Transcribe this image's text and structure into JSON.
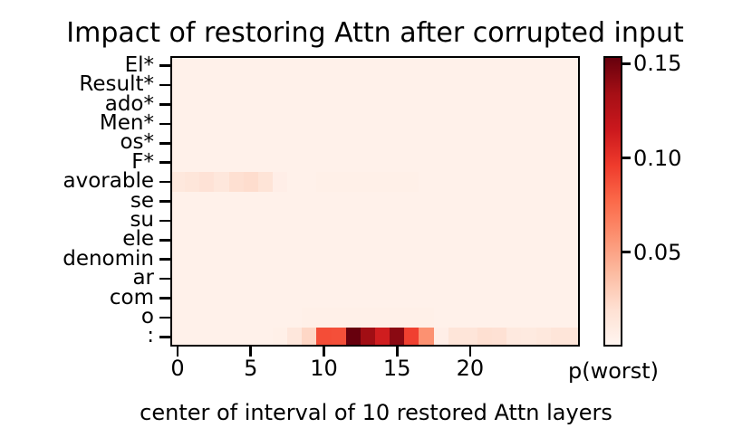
{
  "title": "Impact of restoring Attn after corrupted input",
  "xlabel": "center of interval of 10 restored Attn layers",
  "colorbar": {
    "label": "p(worst)",
    "ticks": [
      0.05,
      0.1,
      0.15
    ],
    "tick_labels": [
      "0.05",
      "0.10",
      "0.15"
    ]
  },
  "colors": {
    "axis": "#000000",
    "background": "#ffffff",
    "reds_colormap_stops": [
      "#fff5f0",
      "#fee0d2",
      "#fcbba1",
      "#fc9272",
      "#fb6a4a",
      "#ef3b2c",
      "#cb181d",
      "#a50f15",
      "#67000d"
    ]
  },
  "chart_data": {
    "type": "heatmap",
    "title": "Impact of restoring Attn after corrupted input",
    "xlabel": "center of interval of 10 restored Attn layers",
    "value_label": "p(worst)",
    "colormap": "Reds",
    "vmin": 0,
    "vmax": 0.154,
    "n_cols": 28,
    "x_range": [
      -0.5,
      27.5
    ],
    "x_ticks": [
      0,
      5,
      10,
      15,
      20
    ],
    "x_tick_labels": [
      "0",
      "5",
      "10",
      "15",
      "20"
    ],
    "legend_position": "right-colorbar",
    "grid": false,
    "rows": [
      {
        "label": "El*",
        "values": [
          0.004,
          0.004,
          0.004,
          0.004,
          0.004,
          0.004,
          0.004,
          0.004,
          0.004,
          0.004,
          0.004,
          0.004,
          0.004,
          0.004,
          0.004,
          0.004,
          0.004,
          0.004,
          0.004,
          0.004,
          0.004,
          0.004,
          0.004,
          0.004,
          0.004,
          0.004,
          0.004,
          0.004
        ]
      },
      {
        "label": "Result*",
        "values": [
          0.004,
          0.004,
          0.004,
          0.004,
          0.004,
          0.004,
          0.004,
          0.004,
          0.004,
          0.004,
          0.004,
          0.004,
          0.004,
          0.004,
          0.004,
          0.004,
          0.004,
          0.004,
          0.004,
          0.004,
          0.004,
          0.004,
          0.004,
          0.004,
          0.004,
          0.004,
          0.004,
          0.004
        ]
      },
      {
        "label": "ado*",
        "values": [
          0.004,
          0.004,
          0.004,
          0.004,
          0.004,
          0.004,
          0.004,
          0.004,
          0.004,
          0.004,
          0.004,
          0.004,
          0.004,
          0.004,
          0.004,
          0.004,
          0.004,
          0.004,
          0.004,
          0.004,
          0.004,
          0.004,
          0.004,
          0.004,
          0.004,
          0.004,
          0.004,
          0.004
        ]
      },
      {
        "label": "Men*",
        "values": [
          0.004,
          0.004,
          0.004,
          0.004,
          0.004,
          0.004,
          0.004,
          0.004,
          0.004,
          0.004,
          0.004,
          0.004,
          0.004,
          0.004,
          0.004,
          0.004,
          0.004,
          0.004,
          0.004,
          0.004,
          0.004,
          0.004,
          0.004,
          0.004,
          0.004,
          0.004,
          0.004,
          0.004
        ]
      },
      {
        "label": "os*",
        "values": [
          0.004,
          0.004,
          0.004,
          0.004,
          0.004,
          0.004,
          0.004,
          0.004,
          0.004,
          0.004,
          0.004,
          0.004,
          0.004,
          0.004,
          0.004,
          0.004,
          0.004,
          0.004,
          0.004,
          0.004,
          0.004,
          0.004,
          0.004,
          0.004,
          0.004,
          0.004,
          0.004,
          0.004
        ]
      },
      {
        "label": "F*",
        "values": [
          0.004,
          0.004,
          0.004,
          0.004,
          0.004,
          0.004,
          0.004,
          0.004,
          0.004,
          0.004,
          0.004,
          0.004,
          0.004,
          0.004,
          0.004,
          0.004,
          0.004,
          0.004,
          0.004,
          0.004,
          0.004,
          0.004,
          0.004,
          0.004,
          0.004,
          0.004,
          0.004,
          0.004
        ]
      },
      {
        "label": "avorable",
        "values": [
          0.012,
          0.014,
          0.017,
          0.013,
          0.019,
          0.021,
          0.016,
          0.006,
          0.004,
          0.004,
          0.005,
          0.005,
          0.005,
          0.005,
          0.005,
          0.005,
          0.005,
          0.004,
          0.004,
          0.004,
          0.004,
          0.004,
          0.004,
          0.004,
          0.004,
          0.004,
          0.004,
          0.004
        ]
      },
      {
        "label": "se",
        "values": [
          0.004,
          0.004,
          0.004,
          0.004,
          0.004,
          0.004,
          0.004,
          0.004,
          0.004,
          0.004,
          0.004,
          0.004,
          0.004,
          0.004,
          0.004,
          0.004,
          0.004,
          0.004,
          0.004,
          0.004,
          0.004,
          0.004,
          0.004,
          0.004,
          0.004,
          0.004,
          0.004,
          0.004
        ]
      },
      {
        "label": "su",
        "values": [
          0.004,
          0.004,
          0.004,
          0.004,
          0.004,
          0.004,
          0.004,
          0.004,
          0.004,
          0.004,
          0.004,
          0.004,
          0.004,
          0.004,
          0.004,
          0.004,
          0.004,
          0.004,
          0.004,
          0.004,
          0.004,
          0.004,
          0.004,
          0.004,
          0.004,
          0.004,
          0.004,
          0.004
        ]
      },
      {
        "label": "ele",
        "values": [
          0.004,
          0.004,
          0.004,
          0.004,
          0.004,
          0.004,
          0.004,
          0.004,
          0.004,
          0.004,
          0.004,
          0.004,
          0.004,
          0.004,
          0.004,
          0.004,
          0.004,
          0.004,
          0.004,
          0.004,
          0.004,
          0.004,
          0.004,
          0.004,
          0.004,
          0.004,
          0.004,
          0.004
        ]
      },
      {
        "label": "denomin",
        "values": [
          0.004,
          0.004,
          0.004,
          0.004,
          0.004,
          0.004,
          0.004,
          0.004,
          0.004,
          0.004,
          0.004,
          0.004,
          0.004,
          0.004,
          0.004,
          0.004,
          0.004,
          0.004,
          0.004,
          0.004,
          0.004,
          0.004,
          0.004,
          0.004,
          0.004,
          0.004,
          0.004,
          0.004
        ]
      },
      {
        "label": "ar",
        "values": [
          0.004,
          0.004,
          0.004,
          0.004,
          0.004,
          0.004,
          0.004,
          0.004,
          0.004,
          0.004,
          0.004,
          0.004,
          0.004,
          0.004,
          0.004,
          0.004,
          0.004,
          0.004,
          0.004,
          0.004,
          0.004,
          0.004,
          0.004,
          0.004,
          0.004,
          0.004,
          0.004,
          0.004
        ]
      },
      {
        "label": "com",
        "values": [
          0.004,
          0.004,
          0.004,
          0.004,
          0.004,
          0.004,
          0.004,
          0.004,
          0.004,
          0.004,
          0.004,
          0.004,
          0.004,
          0.004,
          0.004,
          0.004,
          0.004,
          0.004,
          0.004,
          0.004,
          0.004,
          0.004,
          0.004,
          0.004,
          0.004,
          0.004,
          0.004,
          0.004
        ]
      },
      {
        "label": "o",
        "values": [
          0.004,
          0.004,
          0.004,
          0.004,
          0.004,
          0.004,
          0.004,
          0.004,
          0.004,
          0.005,
          0.005,
          0.005,
          0.005,
          0.005,
          0.005,
          0.005,
          0.005,
          0.005,
          0.004,
          0.004,
          0.004,
          0.004,
          0.004,
          0.004,
          0.004,
          0.004,
          0.004,
          0.004
        ]
      },
      {
        "label": ":",
        "values": [
          0.004,
          0.004,
          0.004,
          0.004,
          0.004,
          0.004,
          0.004,
          0.005,
          0.013,
          0.024,
          0.089,
          0.088,
          0.154,
          0.136,
          0.113,
          0.143,
          0.094,
          0.058,
          0.006,
          0.015,
          0.015,
          0.019,
          0.018,
          0.011,
          0.01,
          0.012,
          0.015,
          0.015
        ]
      }
    ]
  }
}
